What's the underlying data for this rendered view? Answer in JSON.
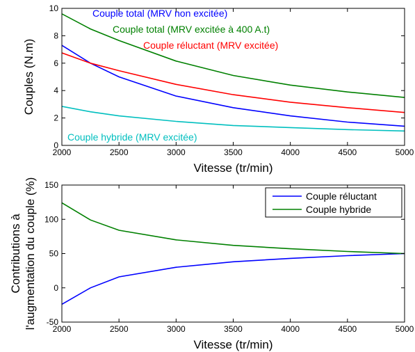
{
  "chart_data": [
    {
      "type": "line",
      "ylabel": "Couples (N.m)",
      "xlabel": "Vitesse (tr/min)",
      "xlim": [
        2000,
        5000
      ],
      "ylim": [
        0,
        10
      ],
      "xticks": [
        2000,
        2500,
        3000,
        3500,
        4000,
        4500,
        5000
      ],
      "yticks": [
        0,
        2,
        4,
        6,
        8,
        10
      ],
      "grid": false,
      "series": [
        {
          "name": "Couple total (MRV non excitée)",
          "color": "#0000ff",
          "x": [
            2000,
            2250,
            2500,
            3000,
            3500,
            4000,
            4500,
            5000
          ],
          "y": [
            7.3,
            6.0,
            5.0,
            3.6,
            2.75,
            2.15,
            1.7,
            1.4
          ]
        },
        {
          "name": "Couple total (MRV excitée à 400 A.t)",
          "color": "#008000",
          "x": [
            2000,
            2250,
            2500,
            3000,
            3500,
            4000,
            4500,
            5000
          ],
          "y": [
            9.6,
            8.5,
            7.65,
            6.15,
            5.1,
            4.4,
            3.9,
            3.5
          ]
        },
        {
          "name": "Couple réluctant (MRV excitée)",
          "color": "#ff0000",
          "x": [
            2000,
            2250,
            2500,
            3000,
            3500,
            4000,
            4500,
            5000
          ],
          "y": [
            6.75,
            6.0,
            5.45,
            4.45,
            3.7,
            3.15,
            2.75,
            2.4
          ]
        },
        {
          "name": "Couple hybride (MRV excitée)",
          "color": "#00bfbf",
          "x": [
            2000,
            2250,
            2500,
            3000,
            3500,
            4000,
            4500,
            5000
          ],
          "y": [
            2.85,
            2.45,
            2.15,
            1.75,
            1.45,
            1.3,
            1.15,
            1.05
          ]
        }
      ],
      "annotations_note": "series names are printed as colored in-plot labels"
    },
    {
      "type": "line",
      "ylabel": "Contributions à l'augmentation du couple (%)",
      "ylabel_lines": [
        "Contributions à",
        "l'augmentation du couple (%)"
      ],
      "xlabel": "Vitesse (tr/min)",
      "xlim": [
        2000,
        5000
      ],
      "ylim": [
        -50,
        150
      ],
      "xticks": [
        2000,
        2500,
        3000,
        3500,
        4000,
        4500,
        5000
      ],
      "yticks": [
        -50,
        0,
        50,
        100,
        150
      ],
      "grid": false,
      "legend": "top-right",
      "series": [
        {
          "name": "Couple réluctant",
          "color": "#0000ff",
          "x": [
            2000,
            2250,
            2500,
            3000,
            3500,
            4000,
            4500,
            5000
          ],
          "y": [
            -24,
            0,
            16,
            30,
            38,
            43,
            47,
            50
          ]
        },
        {
          "name": "Couple hybride",
          "color": "#008000",
          "x": [
            2000,
            2250,
            2500,
            3000,
            3500,
            4000,
            4500,
            5000
          ],
          "y": [
            124,
            99,
            84,
            70,
            62,
            57,
            53,
            50
          ]
        }
      ]
    }
  ]
}
